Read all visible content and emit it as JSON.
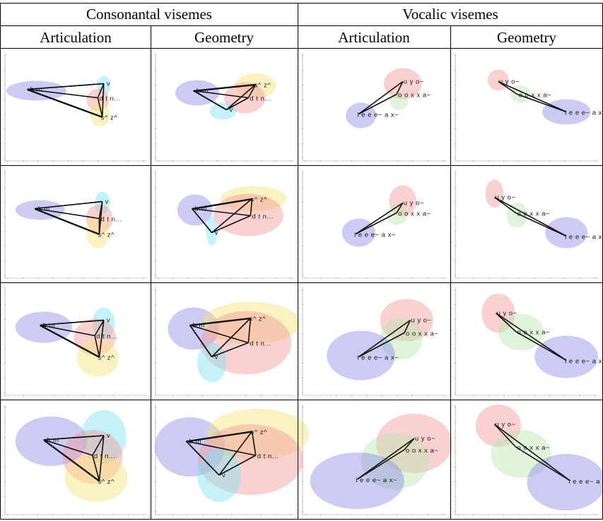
{
  "headers": {
    "consonantal": "Consonantal visemes",
    "vocalic": "Vocalic visemes",
    "articulation": "Articulation",
    "geometry": "Geometry"
  },
  "labels": {
    "bm": "b m",
    "v": "v",
    "dtn": "d t n...",
    "dtn2": "d t n...",
    "sz": "s^ z^",
    "uyo": "u y o~",
    "ooxxa": "o o x x a~",
    "ooxxa2": "o o x x a~",
    "ieee": "i e e e~ a x~",
    "ieee2": "i e e e~ a x~"
  },
  "colors": {
    "blue": "#8c8ce6",
    "cyan": "#7fe3f0",
    "yellow": "#f6e27a",
    "red": "#f29a9a",
    "green": "#b9e6b0"
  }
}
